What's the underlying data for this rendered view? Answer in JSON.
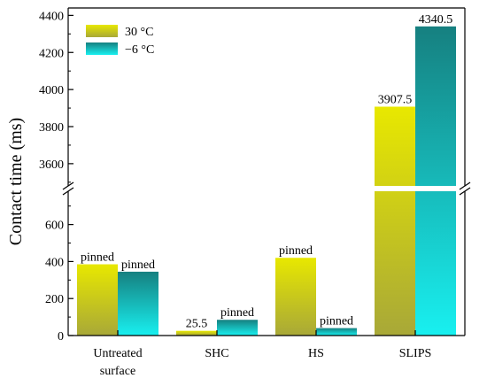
{
  "chart_data": {
    "type": "bar",
    "ylabel": "Contact time (ms)",
    "categories": [
      "Untreated surface",
      "SHC",
      "HS",
      "SLIPS"
    ],
    "category_lines": [
      [
        "Untreated",
        "surface"
      ],
      [
        "SHC"
      ],
      [
        "HS"
      ],
      [
        "SLIPS"
      ]
    ],
    "series": [
      {
        "name": "30 °C",
        "values": [
          385,
          25.5,
          420,
          3907.5
        ],
        "labels": [
          "pinned",
          "25.5",
          "pinned",
          "3907.5"
        ],
        "color_top": "#e8e800",
        "color_bottom": "#a8a838"
      },
      {
        "name": "−6 °C",
        "values": [
          345,
          85,
          40,
          4340.5
        ],
        "labels": [
          "pinned",
          "pinned",
          "pinned",
          "4340.5"
        ],
        "color_top": "#168080",
        "color_bottom": "#18f0f0"
      }
    ],
    "axis_break": {
      "lower_range": [
        0,
        780
      ],
      "upper_range": [
        3480,
        4440
      ]
    },
    "yticks_lower": [
      0,
      200,
      400,
      600
    ],
    "yticks_upper": [
      3600,
      3800,
      4000,
      4200,
      4400
    ],
    "legend_position": "top-left",
    "grid": false
  }
}
